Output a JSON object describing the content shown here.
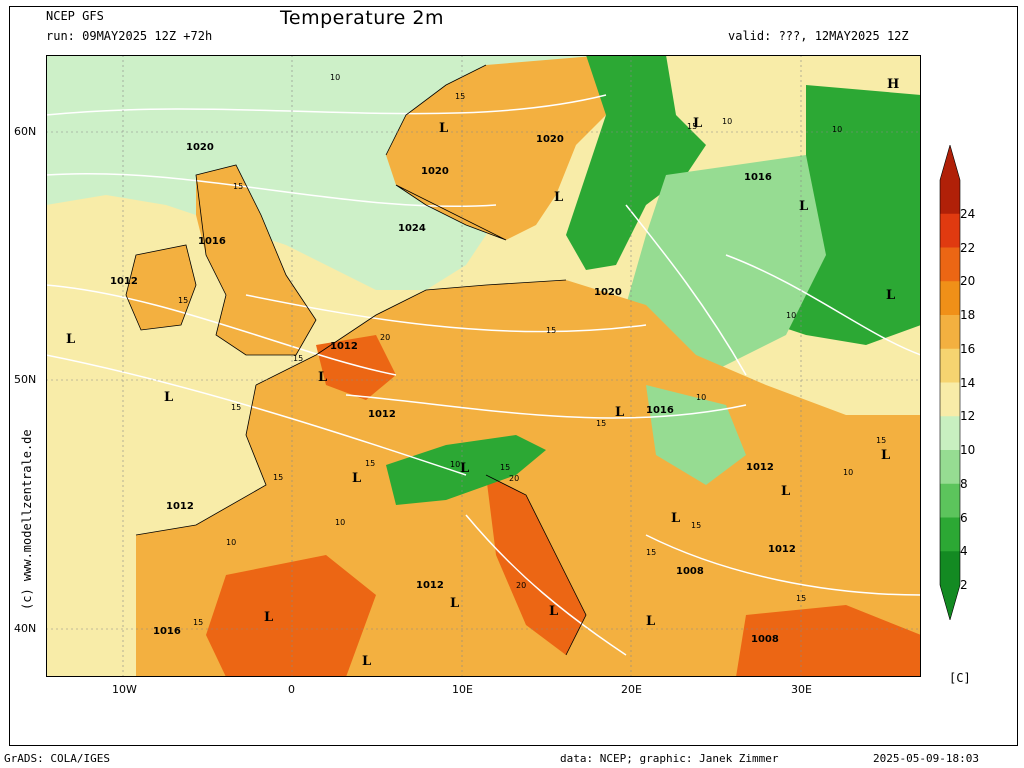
{
  "header": {
    "model": "NCEP GFS",
    "title": "Temperature 2m",
    "run": "run: 09MAY2025 12Z +72h",
    "valid": "valid: ???, 12MAY2025 12Z"
  },
  "side_label": "(c) www.modellzentrale.de",
  "axes": {
    "lat_labels": [
      "60N",
      "50N",
      "40N"
    ],
    "lon_labels": [
      "10W",
      "0",
      "10E",
      "20E",
      "30E"
    ]
  },
  "colorbar": {
    "labels": [
      "24",
      "22",
      "20",
      "18",
      "16",
      "14",
      "12",
      "10",
      "8",
      "6",
      "4",
      "2"
    ],
    "colors": [
      "#b02008",
      "#e03a10",
      "#ec6614",
      "#f09018",
      "#f3b040",
      "#f6d470",
      "#f8eca8",
      "#c8f0c0",
      "#96dc92",
      "#5cc45c",
      "#2ca834",
      "#138a22"
    ],
    "unit": "[C]"
  },
  "map": {
    "colors": {
      "sea_north": "#cdf0c8",
      "sea_atlantic": "#f8eca8",
      "land_warm": "#f3b040",
      "land_hot": "#ec6614",
      "land_cool": "#96dc92",
      "land_cold": "#2ca834",
      "contour": "#ffffff",
      "coast": "#000000"
    },
    "pressure_labels": [
      "1020",
      "1020",
      "1020",
      "1020",
      "1024",
      "1016",
      "1012",
      "1012",
      "1012",
      "1012",
      "1020",
      "1016",
      "1016",
      "1012",
      "1012",
      "1008",
      "1012",
      "1016",
      "1008"
    ],
    "temp_contour_labels": [
      "10",
      "15",
      "15",
      "10",
      "15",
      "15",
      "10",
      "15",
      "15",
      "10",
      "15",
      "10",
      "20",
      "15",
      "10",
      "15",
      "15",
      "10",
      "15",
      "10",
      "15",
      "15",
      "10",
      "20",
      "20",
      "15",
      "15",
      "15"
    ],
    "pressure_centers": [
      "H",
      "L",
      "L",
      "L",
      "L",
      "L",
      "L",
      "L",
      "L",
      "L",
      "L",
      "L",
      "L",
      "L",
      "L",
      "L",
      "L",
      "L",
      "L",
      "L",
      "L",
      "L"
    ]
  },
  "footer": {
    "left": "GrADS: COLA/IGES",
    "center": "data: NCEP; graphic: Janek Zimmer",
    "right": "2025-05-09-18:03"
  }
}
